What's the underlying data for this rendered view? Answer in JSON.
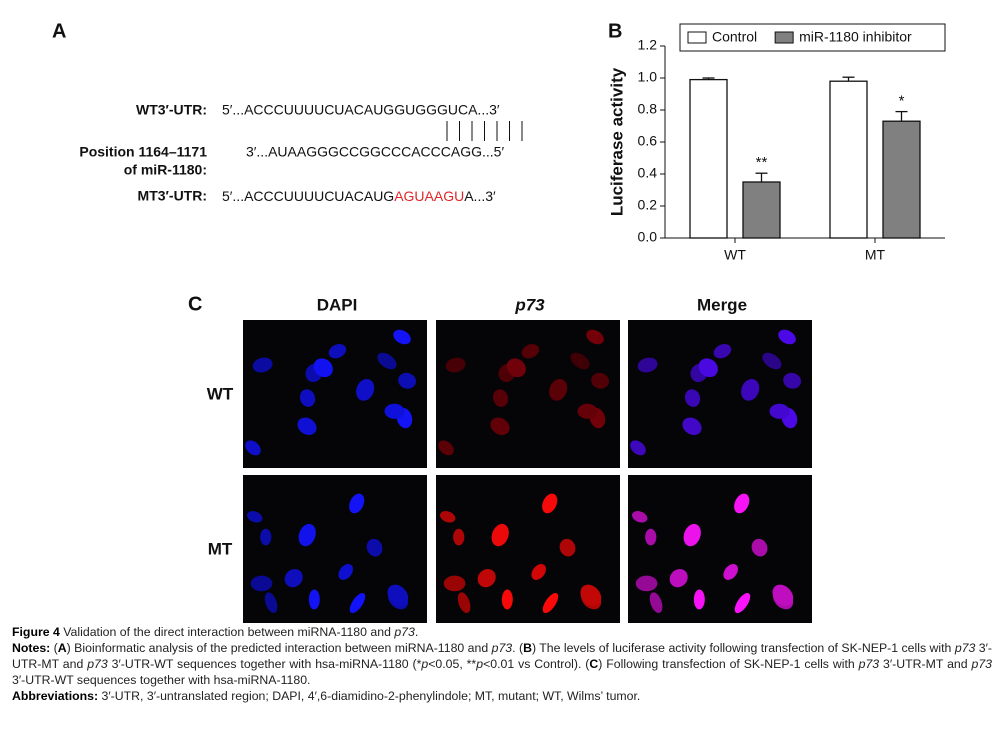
{
  "panel_a": {
    "label": "A",
    "wt_label": "WT3′-UTR:",
    "wt_seq": "5′...ACCCUUUUCUACAUGGUGGGUCA...3′",
    "mirna_label_1": "Position 1164–1171",
    "mirna_label_2": "of miR-1180:",
    "mirna_seq": "3′...AUAAGGGCCGGCCCACCCAGG...5′",
    "mt_label": "MT3′-UTR:",
    "mt_seq_start": "5′...ACCCUUUUCUACAUG",
    "mt_seq_mutant": "AGUAAGU",
    "mt_seq_end": "A...3′"
  },
  "chart_data": {
    "type": "bar",
    "panel_label": "B",
    "ylabel": "Luciferase activity",
    "categories": [
      "WT",
      "MT"
    ],
    "series": [
      {
        "name": "Control",
        "color": "#ffffff",
        "values": [
          0.99,
          0.98
        ],
        "errors": [
          0.01,
          0.025
        ]
      },
      {
        "name": "miR-1180 inhibitor",
        "color": "#808080",
        "values": [
          0.35,
          0.73
        ],
        "errors": [
          0.055,
          0.06
        ]
      }
    ],
    "annotations": [
      "**",
      "*"
    ],
    "ylim": [
      0,
      1.2
    ],
    "yticks": [
      {
        "value": 0,
        "label": "0.0"
      },
      {
        "value": 0.2,
        "label": "0.2"
      },
      {
        "value": 0.4,
        "label": "0.4"
      },
      {
        "value": 0.6,
        "label": "0.6"
      },
      {
        "value": 0.8,
        "label": "0.8"
      },
      {
        "value": 1.0,
        "label": "1.0"
      },
      {
        "value": 1.2,
        "label": "1.2"
      }
    ],
    "legend": "top"
  },
  "panel_c": {
    "label": "C",
    "columns": [
      "DAPI",
      "p73",
      "Merge"
    ],
    "rows": [
      "WT",
      "MT"
    ]
  },
  "caption": {
    "title": [
      {
        "bold": "Figure 4"
      },
      {
        "text": " Validation of the direct interaction between miRNA-1180 and "
      },
      {
        "italic": "p73"
      },
      {
        "text": "."
      }
    ],
    "notes": [
      {
        "bold": "Notes:"
      },
      {
        "text": " ("
      },
      {
        "bold": "A"
      },
      {
        "text": ") Bioinformatic analysis of the predicted interaction between miRNA-1180 and "
      },
      {
        "italic": "p73"
      },
      {
        "text": ". ("
      },
      {
        "bold": "B"
      },
      {
        "text": ") The levels of luciferase activity following transfection of SK-NEP-1 cells with "
      },
      {
        "italic": "p73"
      },
      {
        "text": " 3′-UTR-MT and "
      },
      {
        "italic": "p73"
      },
      {
        "text": " 3′-UTR-WT sequences together with hsa-miRNA-1180 (*"
      },
      {
        "italic": "p"
      },
      {
        "text": "<0.05, **"
      },
      {
        "italic": "p"
      },
      {
        "text": "<0.01 vs Control). ("
      },
      {
        "bold": "C"
      },
      {
        "text": ") Following transfection of SK-NEP-1 cells with "
      },
      {
        "italic": "p73"
      },
      {
        "text": " 3′-UTR-MT and "
      },
      {
        "italic": "p73"
      },
      {
        "text": " 3′-UTR-WT sequences together with hsa-miRNA-1180."
      }
    ],
    "abbreviations": [
      {
        "bold": "Abbreviations:"
      },
      {
        "text": " 3′-UTR, 3′-untranslated region; DAPI, 4′,6-diamidino-2-phenylindole; MT, mutant; WT, Wilms’ tumor."
      }
    ]
  }
}
